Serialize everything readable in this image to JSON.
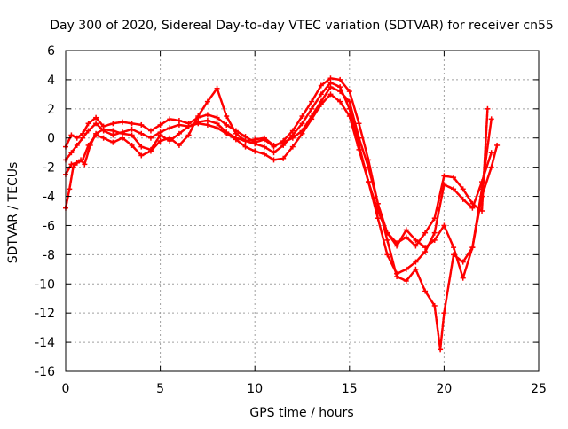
{
  "chart_data": {
    "type": "line",
    "title": "Day 300 of 2020, Sidereal Day-to-day VTEC variation (SDTVAR) for receiver cn55",
    "xlabel": "GPS time / hours",
    "ylabel": "SDTVAR / TECUs",
    "xlim": [
      0,
      25
    ],
    "ylim": [
      -16,
      6
    ],
    "xticks": [
      0,
      5,
      10,
      15,
      20,
      25
    ],
    "yticks": [
      -16,
      -14,
      -12,
      -10,
      -8,
      -6,
      -4,
      -2,
      0,
      2,
      4,
      6
    ],
    "grid": true,
    "marker": "+",
    "color": "#ff0000",
    "series": [
      {
        "name": "trace-1",
        "x": [
          0.0,
          0.3,
          0.6,
          0.9,
          1.2,
          1.6,
          2.0,
          2.5,
          3.0,
          3.5,
          4.0,
          4.5,
          5.0,
          5.5,
          6.0,
          6.5,
          7.0,
          7.5,
          8.0,
          8.5,
          9.0,
          9.5,
          10.0,
          10.5,
          11.0,
          11.5,
          12.0,
          12.5,
          13.0,
          13.5,
          14.0,
          14.5,
          15.0,
          15.5,
          16.0,
          16.5,
          17.0,
          17.5,
          18.0,
          18.5,
          19.0,
          19.5,
          20.0,
          20.5,
          21.0,
          21.5,
          22.0,
          22.3
        ],
        "y": [
          -0.6,
          0.2,
          0.0,
          0.3,
          1.0,
          1.4,
          0.8,
          1.0,
          1.1,
          1.0,
          0.9,
          0.5,
          0.9,
          1.3,
          1.2,
          1.0,
          1.4,
          1.6,
          1.4,
          0.9,
          0.5,
          0.1,
          -0.3,
          -0.1,
          -0.6,
          -0.2,
          0.5,
          1.5,
          2.5,
          3.6,
          4.1,
          4.0,
          3.2,
          1.0,
          -1.5,
          -4.5,
          -6.5,
          -7.2,
          -6.8,
          -7.4,
          -6.5,
          -5.5,
          -2.6,
          -2.7,
          -3.5,
          -4.5,
          -5.0,
          2.0
        ]
      },
      {
        "name": "trace-2",
        "x": [
          0.0,
          0.3,
          0.6,
          0.9,
          1.2,
          1.6,
          2.0,
          2.5,
          3.0,
          3.5,
          4.0,
          4.5,
          5.0,
          5.5,
          6.0,
          6.5,
          7.0,
          7.5,
          8.0,
          8.5,
          9.0,
          9.5,
          10.0,
          10.5,
          11.0,
          11.5,
          12.0,
          12.5,
          13.0,
          13.5,
          14.0,
          14.5,
          15.0,
          15.5,
          16.0,
          16.5,
          17.0,
          17.5,
          18.0,
          18.5,
          19.0,
          19.5,
          20.0,
          20.5,
          21.0,
          21.5,
          22.0,
          22.5
        ],
        "y": [
          -1.5,
          -1.0,
          -0.5,
          0.0,
          0.5,
          1.0,
          0.5,
          0.2,
          0.4,
          0.6,
          0.3,
          0.0,
          0.4,
          0.7,
          0.9,
          0.8,
          1.1,
          1.2,
          1.0,
          0.4,
          0.0,
          -0.2,
          -0.4,
          -0.6,
          -1.0,
          -0.5,
          0.2,
          1.0,
          2.0,
          3.0,
          3.8,
          3.5,
          2.0,
          -0.5,
          -3.0,
          -5.5,
          -8.0,
          -9.3,
          -9.0,
          -8.5,
          -7.8,
          -6.5,
          -3.2,
          -3.5,
          -4.2,
          -4.8,
          -3.0,
          -1.0
        ]
      },
      {
        "name": "trace-3",
        "x": [
          0.0,
          0.2,
          0.4,
          0.6,
          0.8,
          1.0,
          1.3,
          1.6,
          2.0,
          2.5,
          3.0,
          3.5,
          4.0,
          4.5,
          5.0,
          5.5,
          6.0,
          6.5,
          7.0,
          7.5,
          8.0,
          8.5,
          9.0,
          9.5,
          10.0,
          10.5,
          11.0,
          11.5,
          12.0,
          12.5,
          13.0,
          13.5,
          14.0,
          14.5,
          15.0,
          15.5,
          16.0,
          16.5,
          17.0,
          17.5,
          18.0,
          18.5,
          19.0,
          19.5,
          20.0,
          20.5,
          21.0,
          21.5,
          22.0,
          22.5,
          22.8
        ],
        "y": [
          -4.8,
          -3.5,
          -2.0,
          -1.7,
          -1.5,
          -1.8,
          -0.5,
          0.3,
          0.6,
          0.5,
          0.3,
          0.2,
          -0.6,
          -0.8,
          0.2,
          -0.2,
          0.3,
          0.8,
          1.0,
          0.9,
          0.7,
          0.3,
          -0.1,
          -0.6,
          -0.9,
          -1.1,
          -1.5,
          -1.4,
          -0.6,
          0.3,
          1.3,
          2.3,
          3.0,
          2.5,
          1.5,
          -0.8,
          -3.0,
          -5.0,
          -6.5,
          -7.4,
          -6.3,
          -7.0,
          -7.5,
          -7.0,
          -6.0,
          -7.5,
          -9.6,
          -7.5,
          -4.0,
          -2.0,
          -0.5
        ]
      },
      {
        "name": "trace-4",
        "x": [
          0.0,
          0.3,
          0.6,
          0.9,
          1.2,
          1.6,
          2.0,
          2.5,
          3.0,
          3.5,
          4.0,
          4.5,
          5.0,
          5.5,
          6.0,
          6.5,
          7.0,
          7.5,
          8.0,
          8.5,
          9.0,
          9.5,
          10.0,
          10.5,
          11.0,
          11.5,
          12.0,
          12.5,
          13.0,
          13.5,
          14.0,
          14.5,
          15.0,
          15.5,
          16.0,
          16.5,
          17.0,
          17.5,
          18.0,
          18.5,
          19.0,
          19.5,
          19.8,
          20.0,
          20.5,
          21.0,
          21.5,
          22.0,
          22.5
        ],
        "y": [
          -2.5,
          -1.8,
          -1.7,
          -1.5,
          -0.5,
          0.2,
          0.0,
          -0.3,
          0.0,
          -0.5,
          -1.2,
          -0.9,
          -0.2,
          0.0,
          -0.5,
          0.2,
          1.5,
          2.5,
          3.4,
          1.5,
          0.3,
          -0.2,
          -0.1,
          0.0,
          -0.5,
          -0.3,
          0.0,
          0.5,
          1.5,
          2.5,
          3.5,
          3.2,
          2.5,
          0.0,
          -2.0,
          -4.5,
          -7.0,
          -9.5,
          -9.8,
          -9.0,
          -10.5,
          -11.5,
          -14.5,
          -12.0,
          -8.0,
          -8.5,
          -7.5,
          -3.5,
          1.3
        ]
      }
    ]
  }
}
